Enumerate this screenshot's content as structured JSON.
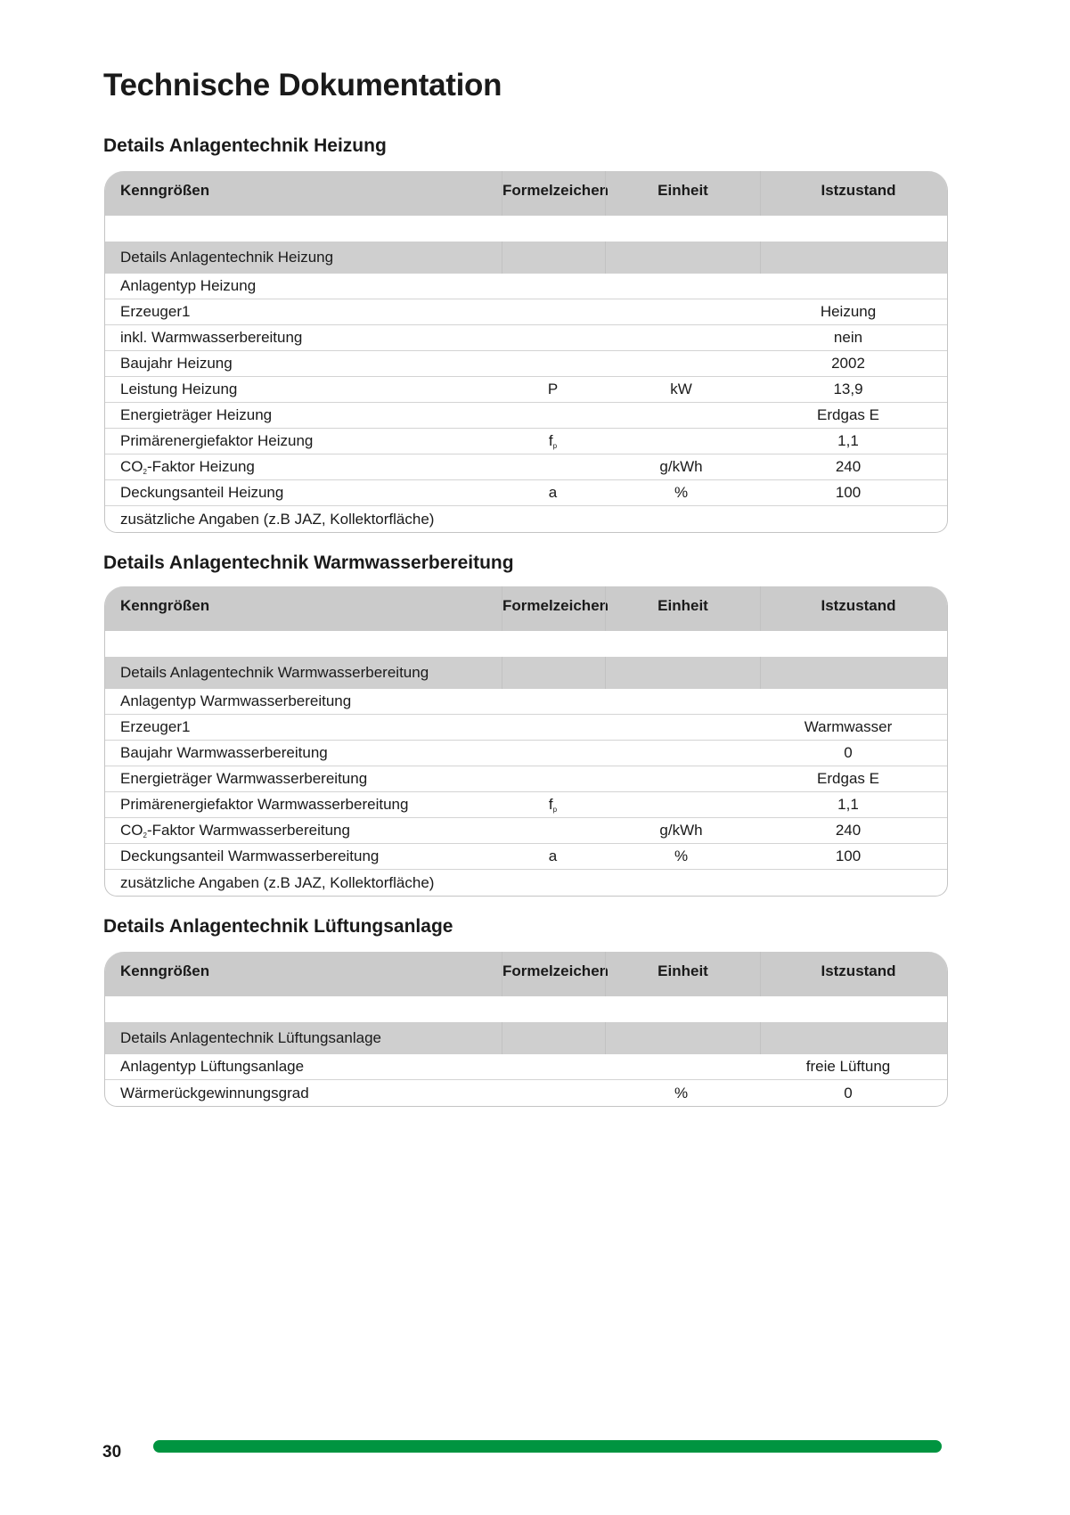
{
  "title": "Technische Dokumentation",
  "headers": {
    "c1": "Kenngrößen",
    "c2": "Formelzeichen",
    "c3": "Einheit",
    "c4": "Istzustand"
  },
  "tables": [
    {
      "heading": "Details Anlagentechnik Heizung",
      "section": "Details Anlagentechnik Heizung",
      "rows": [
        {
          "label": "Anlagentyp Heizung"
        },
        {
          "label": "Erzeuger1",
          "value": "Heizung"
        },
        {
          "label": "inkl. Warmwasserbereitung",
          "value": "nein"
        },
        {
          "label": "Baujahr Heizung",
          "value": "2002"
        },
        {
          "label": "Leistung Heizung",
          "formula": "P",
          "unit": "kW",
          "value": "13,9"
        },
        {
          "label": "Energieträger Heizung",
          "value": "Erdgas E"
        },
        {
          "label": "Primärenergiefaktor Heizung",
          "formula": "f",
          "formula_sub": "p",
          "value": "1,1"
        },
        {
          "label_pre": "CO",
          "label_sub": "2",
          "label": "-Faktor Heizung",
          "unit": "g/kWh",
          "value": "240"
        },
        {
          "label": "Deckungsanteil Heizung",
          "formula": "a",
          "unit": "%",
          "value": "100"
        },
        {
          "label": "zusätzliche Angaben (z.B JAZ, Kollektorfläche)"
        }
      ]
    },
    {
      "heading": "Details Anlagentechnik Warmwasserbereitung",
      "section": "Details Anlagentechnik Warmwasserbereitung",
      "rows": [
        {
          "label": "Anlagentyp Warmwasserbereitung"
        },
        {
          "label": "Erzeuger1",
          "value": "Warmwasser"
        },
        {
          "label": "Baujahr Warmwasserbereitung",
          "value": "0"
        },
        {
          "label": "Energieträger Warmwasserbereitung",
          "value": "Erdgas E"
        },
        {
          "label": "Primärenergiefaktor Warmwasserbereitung",
          "formula": "f",
          "formula_sub": "p",
          "value": "1,1"
        },
        {
          "label_pre": "CO",
          "label_sub": "2",
          "label": "-Faktor Warmwasserbereitung",
          "unit": "g/kWh",
          "value": "240"
        },
        {
          "label": "Deckungsanteil Warmwasserbereitung",
          "formula": "a",
          "unit": "%",
          "value": "100"
        },
        {
          "label": "zusätzliche Angaben (z.B JAZ, Kollektorfläche)"
        }
      ]
    },
    {
      "heading": "Details Anlagentechnik Lüftungsanlage",
      "section": "Details Anlagentechnik Lüftungsanlage",
      "rows": [
        {
          "label": "Anlagentyp Lüftungsanlage",
          "value": "freie Lüftung"
        },
        {
          "label": "Wärmerückgewinnungsgrad",
          "unit": "%",
          "value": "0"
        }
      ]
    }
  ],
  "footer": {
    "page_number": "30",
    "accent_color": "#009440"
  }
}
